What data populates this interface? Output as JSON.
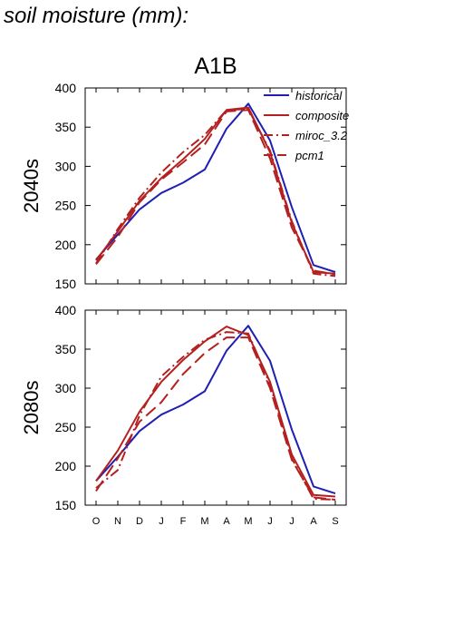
{
  "page_title": "soil moisture (mm):",
  "colors": {
    "historical": "#1f1fb4",
    "scenario": "#b42020"
  },
  "chart_data": {
    "type": "line",
    "title": "A1B",
    "categories": [
      "O",
      "N",
      "D",
      "J",
      "F",
      "M",
      "A",
      "M",
      "J",
      "J",
      "A",
      "S"
    ],
    "yticks": [
      150,
      200,
      250,
      300,
      350,
      400
    ],
    "legend": {
      "placement": "top-right of upper panel",
      "entries": [
        {
          "name": "historical",
          "style": "solid",
          "color": "#1f1fb4"
        },
        {
          "name": "composite",
          "style": "solid",
          "color": "#b42020"
        },
        {
          "name": "miroc_3.2",
          "style": "dashdot",
          "color": "#b42020"
        },
        {
          "name": "pcm1",
          "style": "dashed",
          "color": "#b42020"
        }
      ]
    },
    "panels": [
      {
        "ylabel": "2040s",
        "ylim": [
          150,
          400
        ],
        "series": [
          {
            "name": "historical",
            "style": "solid",
            "color": "#1f1fb4",
            "values": [
              181,
              213,
              245,
              266,
              279,
              296,
              348,
              380,
              333,
              248,
              174,
              165
            ]
          },
          {
            "name": "composite",
            "style": "solid",
            "color": "#b42020",
            "values": [
              180,
              217,
              256,
              285,
              309,
              335,
              372,
              375,
              318,
              228,
              165,
              163
            ]
          },
          {
            "name": "miroc_3.2",
            "style": "dashdot",
            "color": "#b42020",
            "values": [
              176,
              220,
              260,
              292,
              318,
              340,
              372,
              373,
              320,
              230,
              163,
              160
            ]
          },
          {
            "name": "pcm1",
            "style": "dashed",
            "color": "#b42020",
            "values": [
              175,
              210,
              254,
              283,
              305,
              328,
              370,
              372,
              310,
              222,
              167,
              162
            ]
          }
        ]
      },
      {
        "ylabel": "2080s",
        "ylim": [
          150,
          400
        ],
        "series": [
          {
            "name": "historical",
            "style": "solid",
            "color": "#1f1fb4",
            "values": [
              181,
              212,
              245,
              266,
              279,
              296,
              348,
              380,
              335,
              247,
              174,
              165
            ]
          },
          {
            "name": "composite",
            "style": "solid",
            "color": "#b42020",
            "values": [
              181,
              220,
              270,
              308,
              336,
              360,
              379,
              368,
              308,
              215,
              163,
              161
            ]
          },
          {
            "name": "miroc_3.2",
            "style": "dashdot",
            "color": "#b42020",
            "values": [
              172,
              195,
              265,
              315,
              340,
              362,
              372,
              370,
              305,
              210,
              158,
              157
            ]
          },
          {
            "name": "pcm1",
            "style": "dashed",
            "color": "#b42020",
            "values": [
              168,
              210,
              257,
              282,
              318,
              345,
              365,
              365,
              300,
              208,
              160,
              157
            ]
          }
        ]
      }
    ]
  }
}
